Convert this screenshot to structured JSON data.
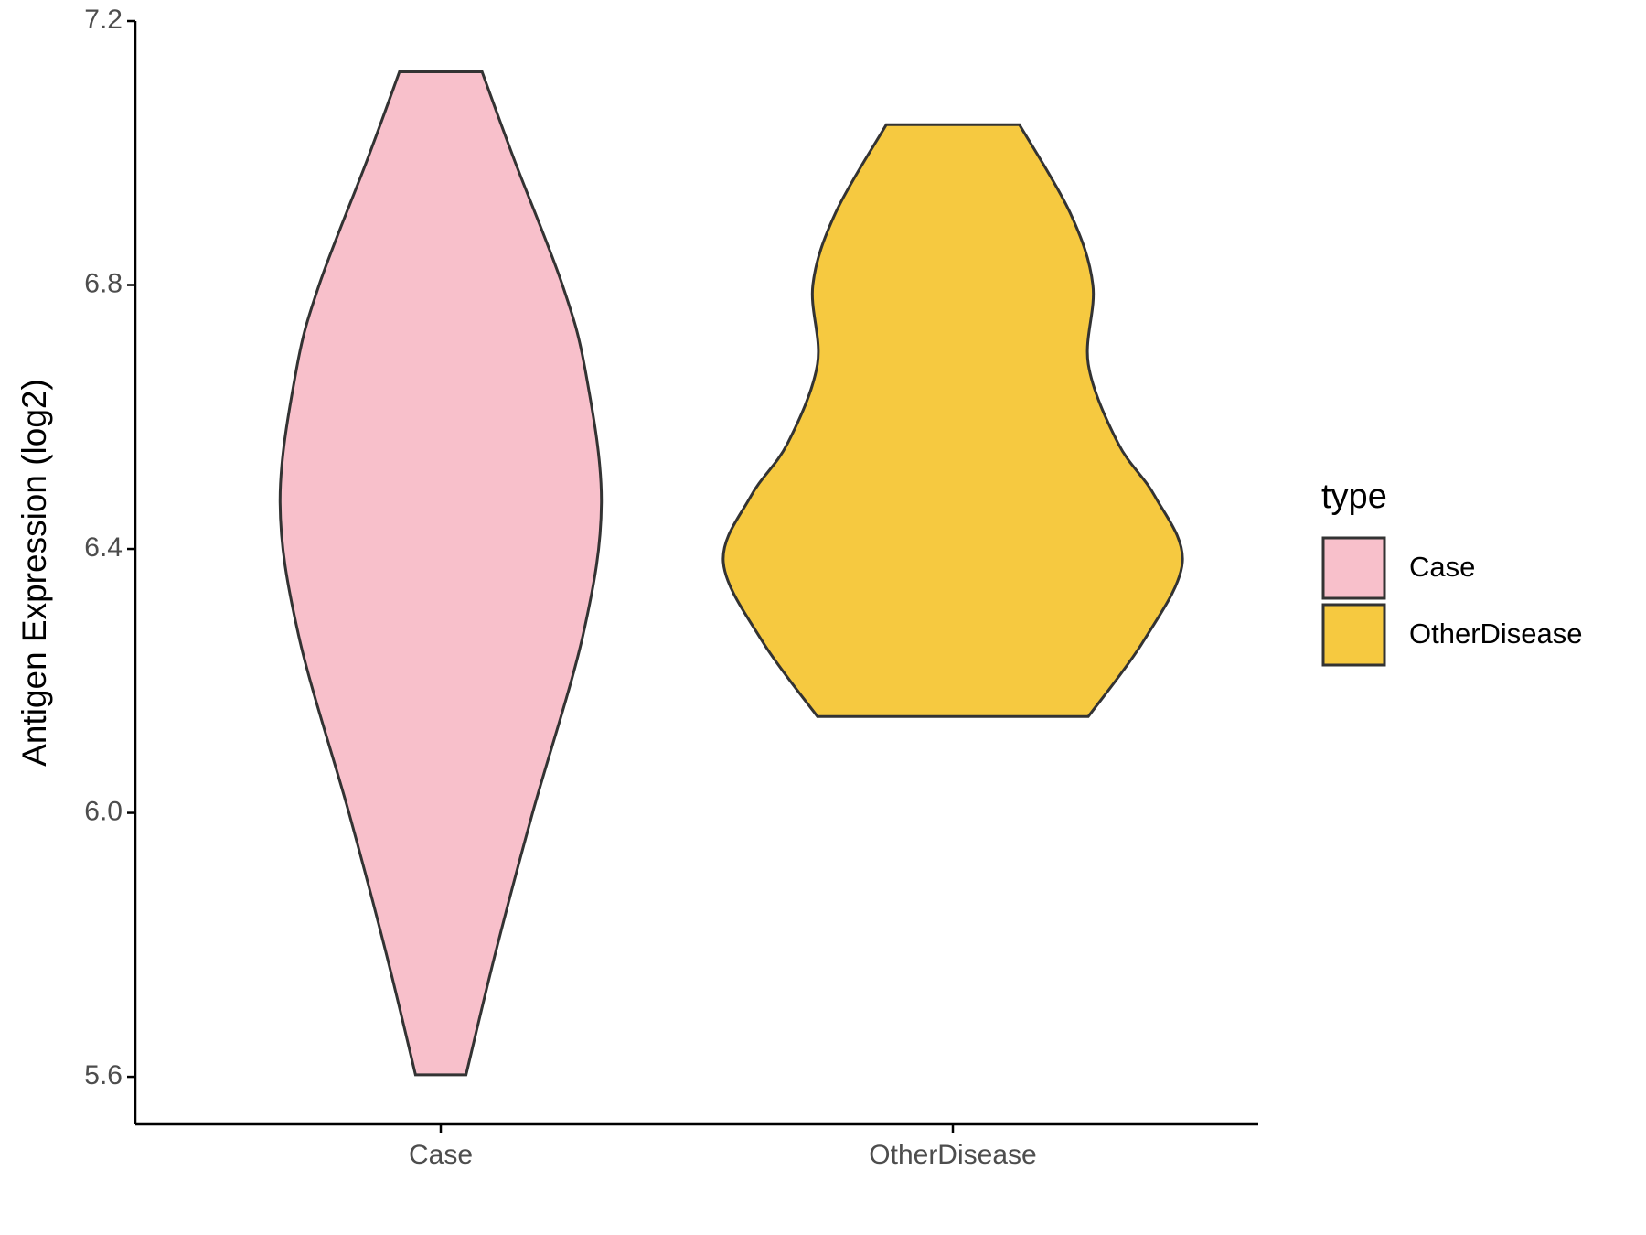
{
  "chart_data": {
    "type": "violin",
    "y_label": "Antigen Expression (log2)",
    "categories": [
      "Case",
      "OtherDisease"
    ],
    "legend_title": "type",
    "legend": "right",
    "ylim": [
      5.528,
      7.2
    ],
    "yticks": [
      5.6,
      {
        "value": 6,
        "label": "6.0"
      },
      6.4,
      6.8,
      7.2
    ],
    "series": [
      {
        "name": "Case",
        "color": "#f8c0cb",
        "y": [
          7.123,
          6.99,
          6.8,
          6.67,
          6.47,
          6.27,
          6.0,
          5.79,
          5.603
        ],
        "density": [
          0.18,
          0.32,
          0.53,
          0.63,
          0.7,
          0.62,
          0.4,
          0.24,
          0.11
        ]
      },
      {
        "name": "OtherDisease",
        "color": "#f6c940",
        "y": [
          7.043,
          6.91,
          6.8,
          6.68,
          6.56,
          6.48,
          6.38,
          6.26,
          6.146
        ],
        "density": [
          0.29,
          0.51,
          0.61,
          0.59,
          0.72,
          0.88,
          1.0,
          0.83,
          0.59
        ]
      }
    ]
  }
}
